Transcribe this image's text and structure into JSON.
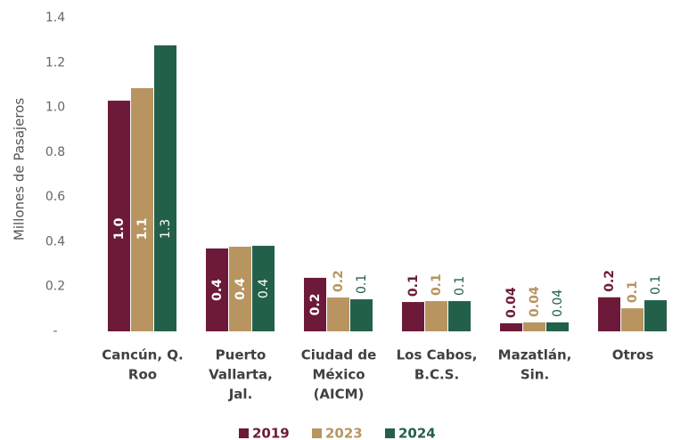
{
  "chart_data": {
    "type": "bar",
    "y_label": "Millones de Pasajeros",
    "categories": [
      [
        "Cancún, Q.",
        "Roo"
      ],
      [
        "Puerto",
        "Vallarta,",
        "Jal."
      ],
      [
        "Ciudad de",
        "México",
        "(AICM)"
      ],
      [
        "Los Cabos,",
        "B.C.S."
      ],
      [
        "Mazatlán,",
        "Sin."
      ],
      [
        "Otros"
      ]
    ],
    "series": [
      {
        "name": "2019",
        "color": "#6d1a3a",
        "values": [
          1.03,
          0.37,
          0.239,
          0.131,
          0.036,
          0.152
        ],
        "value_labels": [
          "1.0",
          "0.4",
          "0.2",
          "0.1",
          "0.04",
          "0.2"
        ]
      },
      {
        "name": "2023",
        "color": "#b89560",
        "values": [
          1.086,
          0.378,
          0.151,
          0.135,
          0.04,
          0.103
        ],
        "value_labels": [
          "1.1",
          "0.4",
          "0.2",
          "0.1",
          "0.04",
          "0.1"
        ]
      },
      {
        "name": "2024",
        "color": "#23604a",
        "values": [
          1.277,
          0.382,
          0.143,
          0.135,
          0.04,
          0.139
        ],
        "value_labels": [
          "1.3",
          "0.4",
          "0.1",
          "0.1",
          "0.04",
          "0.1"
        ]
      }
    ],
    "ylim": [
      0,
      1.4
    ],
    "yticks": [
      {
        "value": 0,
        "label": "-"
      },
      0.2,
      0.4,
      0.6,
      0.8,
      {
        "value": 1,
        "label": "1.0"
      },
      1.2,
      1.4
    ],
    "legend": "bottom"
  }
}
